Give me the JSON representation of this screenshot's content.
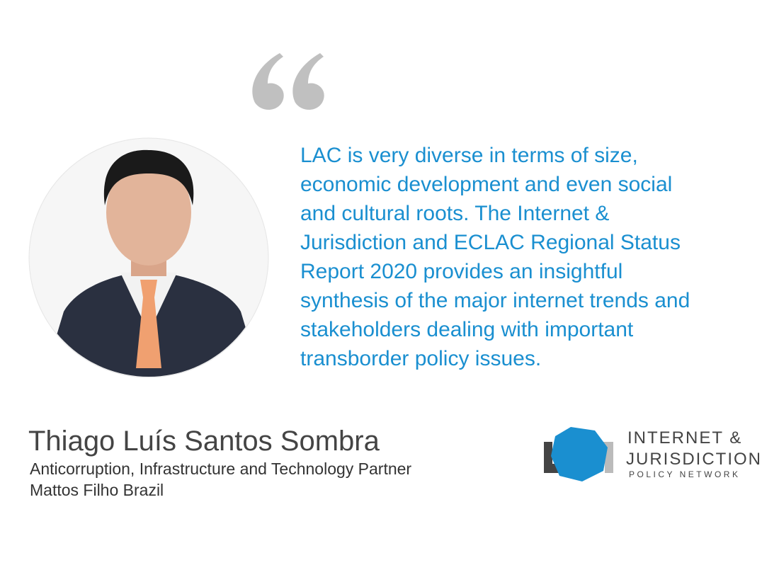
{
  "quote": {
    "lines": [
      "LAC is very diverse in terms of size,",
      "economic development and even social",
      "and cultural roots. The Internet &",
      "Jurisdiction and ECLAC Regional Status",
      "Report 2020 provides an insightful",
      "synthesis of the major internet trends and",
      "stakeholders dealing with important",
      "transborder policy issues."
    ]
  },
  "person": {
    "name": "Thiago Luís Santos Sombra",
    "role": "Anticorruption, Infrastructure and Technology Partner",
    "organization": "Mattos Filho Brazil"
  },
  "logo": {
    "line1": "INTERNET &",
    "line2": "JURISDICTION",
    "line3": "POLICY NETWORK"
  }
}
